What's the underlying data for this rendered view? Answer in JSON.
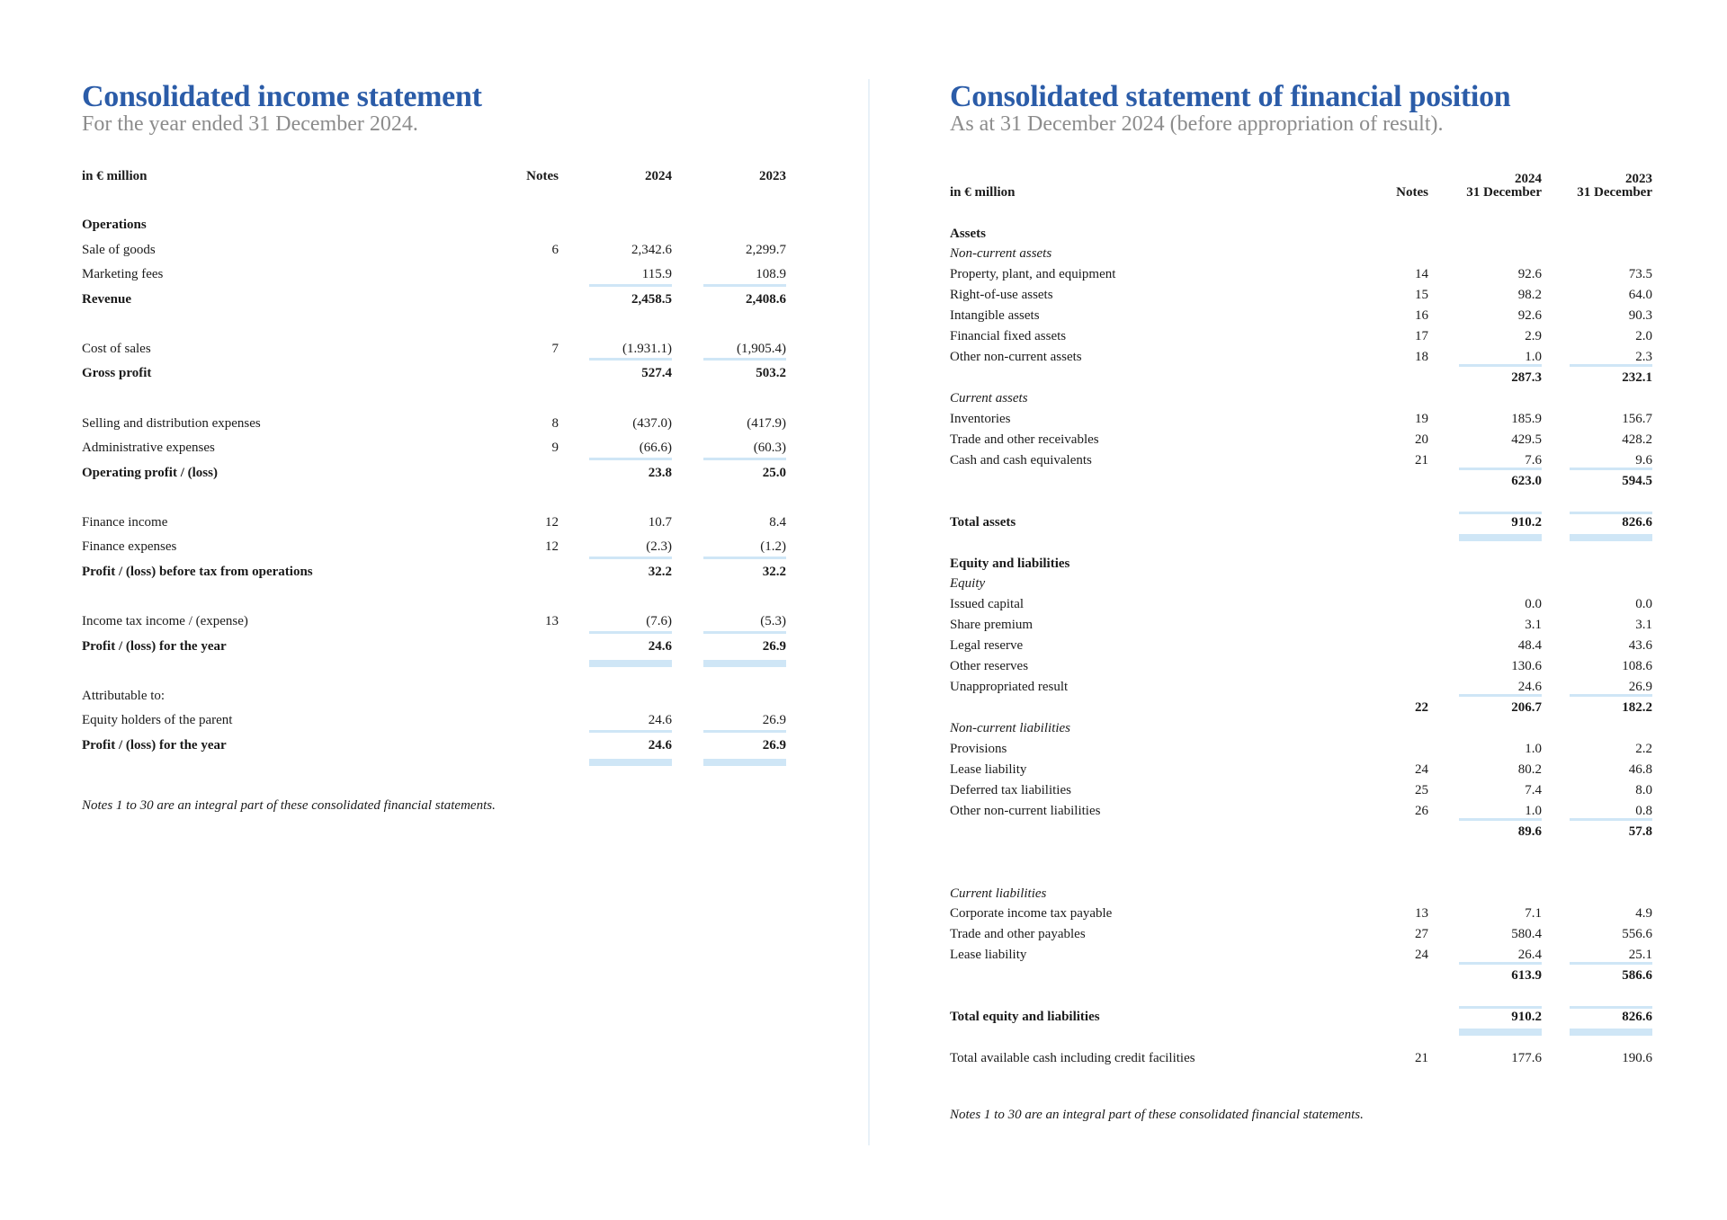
{
  "income_statement": {
    "title": "Consolidated income statement",
    "subtitle": "For the year ended 31 December 2024.",
    "header": {
      "unit": "in € million",
      "notes": "Notes",
      "col1": "2024",
      "col2": "2023"
    },
    "sections": [
      [
        {
          "label": "Operations",
          "style": "bold"
        },
        {
          "label": "Sale of goods",
          "note": "6",
          "v1": "2,342.6",
          "v2": "2,299.7"
        },
        {
          "label": "Marketing fees",
          "v1": "115.9",
          "v2": "108.9",
          "rule": "under"
        },
        {
          "label": "Revenue",
          "style": "bold",
          "v1": "2,458.5",
          "v2": "2,408.6"
        }
      ],
      [
        {
          "label": "Cost of sales",
          "note": "7",
          "v1": "(1.931.1)",
          "v2": "(1,905.4)",
          "rule": "under"
        },
        {
          "label": "Gross profit",
          "style": "bold",
          "v1": "527.4",
          "v2": "503.2"
        }
      ],
      [
        {
          "label": "Selling and distribution expenses",
          "note": "8",
          "v1": "(437.0)",
          "v2": "(417.9)"
        },
        {
          "label": "Administrative expenses",
          "note": "9",
          "v1": "(66.6)",
          "v2": "(60.3)",
          "rule": "under"
        },
        {
          "label": "Operating profit / (loss)",
          "style": "bold",
          "v1": "23.8",
          "v2": "25.0"
        }
      ],
      [
        {
          "label": "Finance income",
          "note": "12",
          "v1": "10.7",
          "v2": "8.4"
        },
        {
          "label": "Finance expenses",
          "note": "12",
          "v1": "(2.3)",
          "v2": "(1.2)",
          "rule": "under"
        },
        {
          "label": "Profit / (loss) before tax from operations",
          "style": "bold",
          "v1": "32.2",
          "v2": "32.2"
        }
      ],
      [
        {
          "label": "Income tax income / (expense)",
          "note": "13",
          "v1": "(7.6)",
          "v2": "(5.3)",
          "rule": "under"
        },
        {
          "label": "Profit / (loss) for the year",
          "style": "bold",
          "v1": "24.6",
          "v2": "26.9",
          "rule": "double"
        }
      ],
      [
        {
          "label": "Attributable to:"
        },
        {
          "label": "Equity holders of the parent",
          "v1": "24.6",
          "v2": "26.9",
          "rule": "under"
        },
        {
          "label": "Profit / (loss) for the year",
          "style": "bold",
          "v1": "24.6",
          "v2": "26.9",
          "rule": "double"
        }
      ]
    ],
    "footnote": "Notes 1 to 30 are an integral part of these consolidated financial statements."
  },
  "financial_position": {
    "title": "Consolidated statement of financial position",
    "subtitle": "As at 31 December 2024 (before appropriation of result).",
    "header": {
      "unit": "in € million",
      "notes": "Notes",
      "col1_year": "2024",
      "col1_date": "31 December",
      "col2_year": "2023",
      "col2_date": "31 December"
    },
    "sections": [
      [
        {
          "label": "Assets",
          "style": "bold"
        },
        {
          "label": "Non-current assets",
          "style": "italic"
        },
        {
          "label": "Property, plant, and equipment",
          "note": "14",
          "v1": "92.6",
          "v2": "73.5"
        },
        {
          "label": "Right-of-use assets",
          "note": "15",
          "v1": "98.2",
          "v2": "64.0"
        },
        {
          "label": "Intangible assets",
          "note": "16",
          "v1": "92.6",
          "v2": "90.3"
        },
        {
          "label": "Financial fixed assets",
          "note": "17",
          "v1": "2.9",
          "v2": "2.0"
        },
        {
          "label": "Other non-current assets",
          "note": "18",
          "v1": "1.0",
          "v2": "2.3",
          "rule": "under"
        },
        {
          "label": "",
          "style": "bold",
          "v1": "287.3",
          "v2": "232.1"
        },
        {
          "label": "Current assets",
          "style": "italic"
        },
        {
          "label": "Inventories",
          "note": "19",
          "v1": "185.9",
          "v2": "156.7"
        },
        {
          "label": "Trade and other receivables",
          "note": "20",
          "v1": "429.5",
          "v2": "428.2"
        },
        {
          "label": "Cash and cash equivalents",
          "note": "21",
          "v1": "7.6",
          "v2": "9.6",
          "rule": "under"
        },
        {
          "label": "",
          "style": "bold",
          "v1": "623.0",
          "v2": "594.5"
        }
      ],
      [
        {
          "label": "Total assets",
          "style": "bold",
          "v1": "910.2",
          "v2": "826.6",
          "rule": "over-double"
        }
      ],
      [
        {
          "label": "Equity and liabilities",
          "style": "bold"
        },
        {
          "label": "Equity",
          "style": "italic"
        },
        {
          "label": "Issued capital",
          "v1": "0.0",
          "v2": "0.0"
        },
        {
          "label": "Share premium",
          "v1": "3.1",
          "v2": "3.1"
        },
        {
          "label": "Legal reserve",
          "v1": "48.4",
          "v2": "43.6"
        },
        {
          "label": "Other reserves",
          "v1": "130.6",
          "v2": "108.6"
        },
        {
          "label": "Unappropriated result",
          "v1": "24.6",
          "v2": "26.9",
          "rule": "under"
        },
        {
          "label": "",
          "style": "bold",
          "note": "22",
          "v1": "206.7",
          "v2": "182.2"
        },
        {
          "label": "Non-current liabilities",
          "style": "italic"
        },
        {
          "label": "Provisions",
          "v1": "1.0",
          "v2": "2.2"
        },
        {
          "label": "Lease liability",
          "note": "24",
          "v1": "80.2",
          "v2": "46.8"
        },
        {
          "label": "Deferred tax liabilities",
          "note": "25",
          "v1": "7.4",
          "v2": "8.0"
        },
        {
          "label": "Other non-current liabilities",
          "note": "26",
          "v1": "1.0",
          "v2": "0.8",
          "rule": "under"
        },
        {
          "label": "",
          "style": "bold",
          "v1": "89.6",
          "v2": "57.8"
        }
      ],
      [
        {
          "label": "Current liabilities",
          "style": "italic"
        },
        {
          "label": "Corporate income tax payable",
          "note": "13",
          "v1": "7.1",
          "v2": "4.9"
        },
        {
          "label": "Trade and other payables",
          "note": "27",
          "v1": "580.4",
          "v2": "556.6"
        },
        {
          "label": "Lease liability",
          "note": "24",
          "v1": "26.4",
          "v2": "25.1",
          "rule": "under"
        },
        {
          "label": "",
          "style": "bold",
          "v1": "613.9",
          "v2": "586.6"
        }
      ],
      [
        {
          "label": "Total equity and liabilities",
          "style": "bold",
          "v1": "910.2",
          "v2": "826.6",
          "rule": "over-double"
        }
      ],
      [
        {
          "label": "Total available cash including credit facilities",
          "note": "21",
          "v1": "177.6",
          "v2": "190.6"
        }
      ]
    ],
    "footnote": "Notes 1 to 30 are an integral part of these consolidated financial statements."
  },
  "colors": {
    "title": "#2b5ca8",
    "subtitle": "#8c8c8c",
    "rule": "#cfe6f6",
    "divider": "#e8f1f8"
  }
}
